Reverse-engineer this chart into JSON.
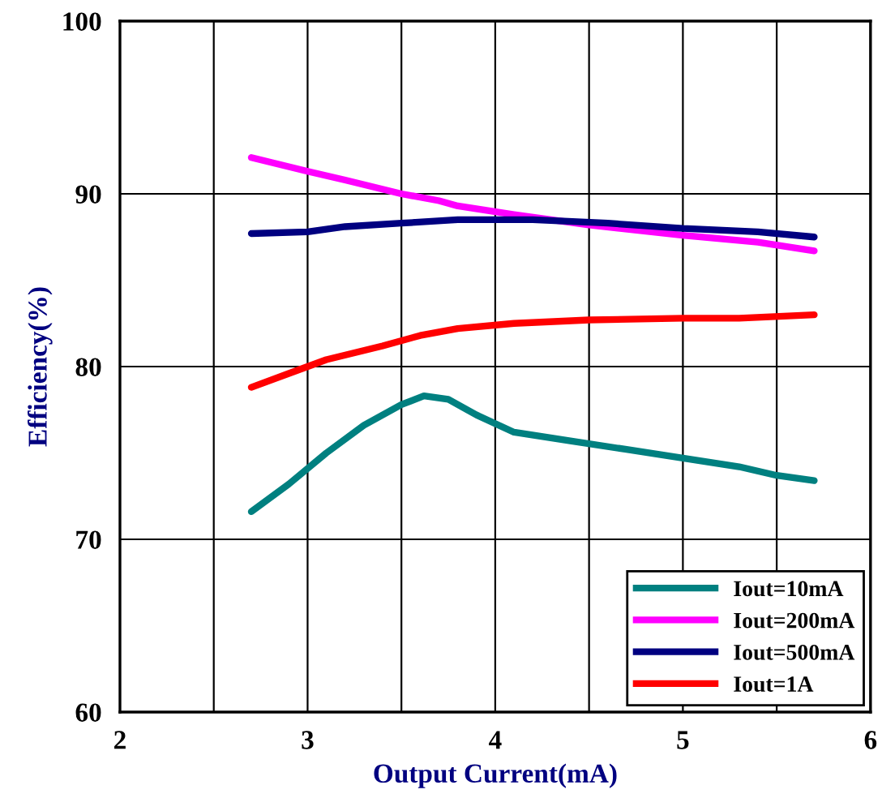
{
  "chart_data": {
    "type": "line",
    "xlabel": "Output Current(mA)",
    "ylabel": "Efficiency(%)",
    "xlim": [
      2,
      6
    ],
    "xticks": [
      2,
      {
        "value": 2.5,
        "label": null
      },
      3,
      {
        "value": 3.5,
        "label": null
      },
      4,
      {
        "value": 4.5,
        "label": null
      },
      5,
      {
        "value": 5.5,
        "label": null
      },
      6
    ],
    "ylim": [
      60,
      100
    ],
    "yticks": [
      60,
      70,
      80,
      90,
      100
    ],
    "grid": true,
    "legend": "bottom right",
    "marker": "none",
    "line_style": "solid",
    "series": [
      {
        "name": "Iout=10mA",
        "color": "#008080",
        "x": [
          2.7,
          2.9,
          3.1,
          3.3,
          3.5,
          3.62,
          3.75,
          3.9,
          4.1,
          4.4,
          4.7,
          5.0,
          5.3,
          5.5,
          5.7
        ],
        "values": [
          71.6,
          73.2,
          75.0,
          76.6,
          77.8,
          78.3,
          78.1,
          77.2,
          76.2,
          75.7,
          75.2,
          74.7,
          74.2,
          73.7,
          73.4
        ]
      },
      {
        "name": "Iout=200mA",
        "color": "#ff00ff",
        "x": [
          2.7,
          3.0,
          3.2,
          3.5,
          3.7,
          3.8,
          4.1,
          4.5,
          5.0,
          5.4,
          5.7
        ],
        "values": [
          92.1,
          91.3,
          90.8,
          90.0,
          89.6,
          89.3,
          88.8,
          88.2,
          87.6,
          87.2,
          86.7
        ]
      },
      {
        "name": "Iout=500mA",
        "color": "#000080",
        "x": [
          2.7,
          3.0,
          3.2,
          3.5,
          3.8,
          4.2,
          4.6,
          5.0,
          5.4,
          5.7
        ],
        "values": [
          87.7,
          87.8,
          88.1,
          88.3,
          88.5,
          88.5,
          88.3,
          88.0,
          87.8,
          87.5
        ]
      },
      {
        "name": "Iout=1A",
        "color": "#ff0000",
        "x": [
          2.7,
          2.9,
          3.1,
          3.4,
          3.6,
          3.8,
          4.1,
          4.5,
          5.0,
          5.3,
          5.7
        ],
        "values": [
          78.8,
          79.6,
          80.4,
          81.2,
          81.8,
          82.2,
          82.5,
          82.7,
          82.8,
          82.8,
          83.0
        ]
      }
    ]
  }
}
